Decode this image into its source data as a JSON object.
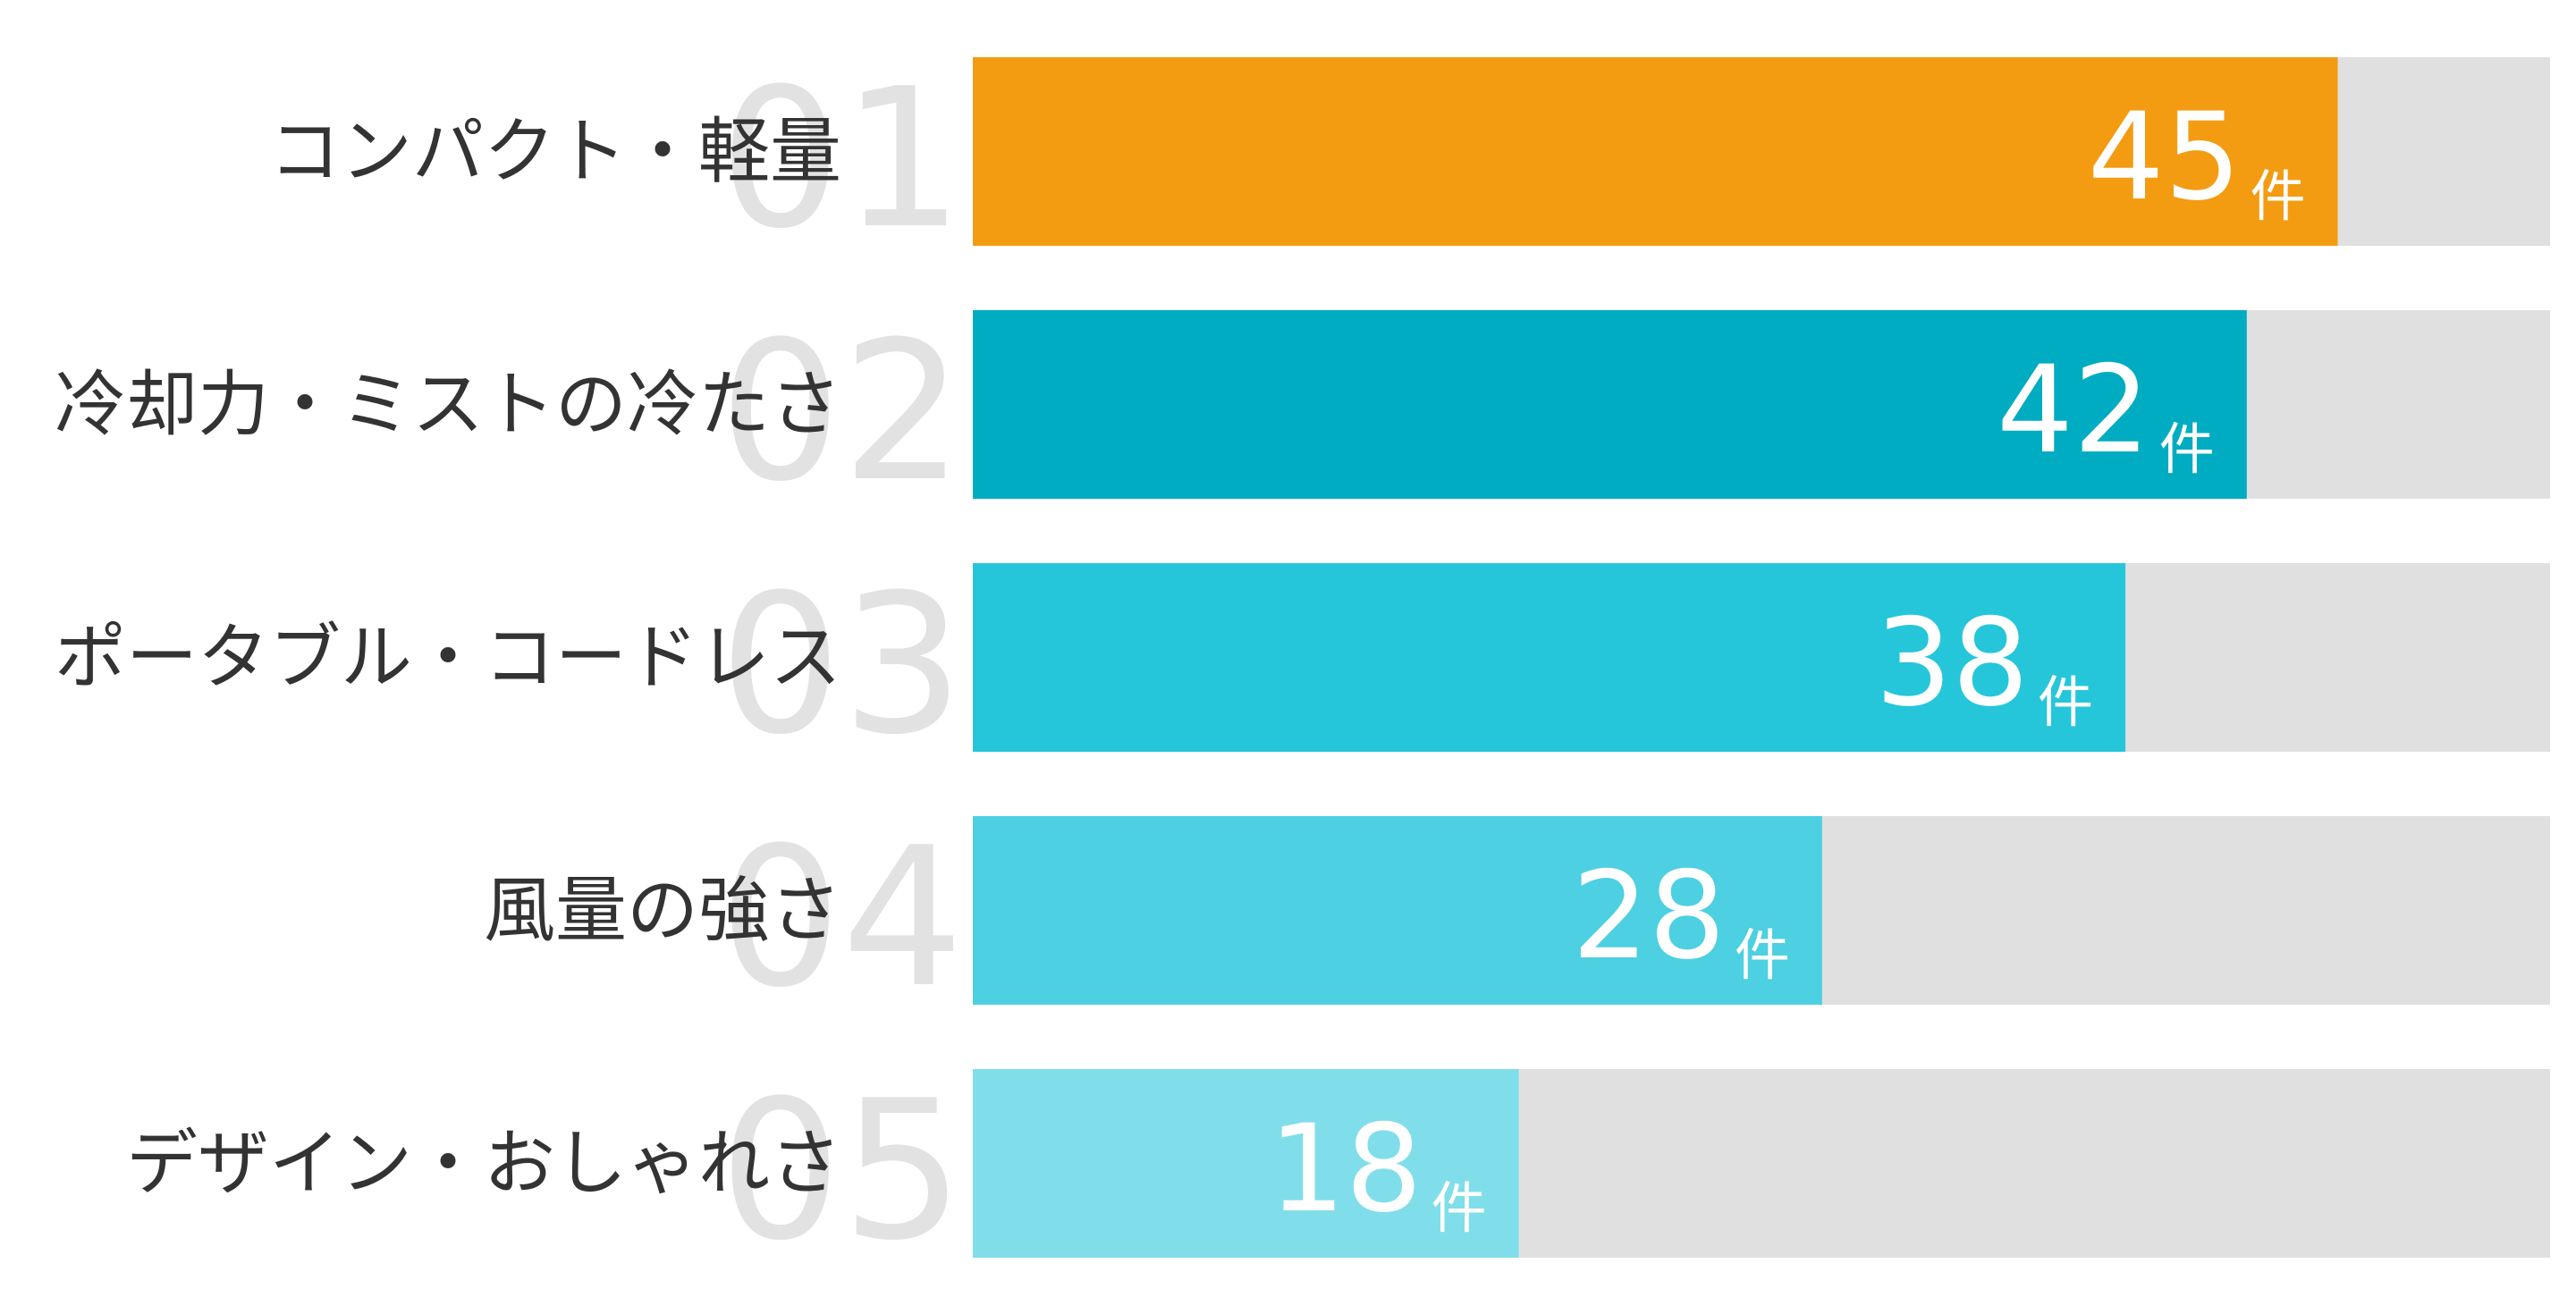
{
  "chart_data": {
    "type": "bar",
    "orientation": "horizontal",
    "categories": [
      "コンパクト・軽量",
      "冷却力・ミストの冷たさ",
      "ポータブル・コードレス",
      "風量の強さ",
      "デザイン・おしゃれさ"
    ],
    "ranks": [
      "01",
      "02",
      "03",
      "04",
      "05"
    ],
    "values": [
      45,
      42,
      38,
      28,
      18
    ],
    "unit": "件",
    "colors": [
      "#f39c12",
      "#00acc1",
      "#26c6da",
      "#4dd0e1",
      "#80deea"
    ],
    "track_color": "#e0e0e0",
    "xlim": [
      0,
      52
    ]
  }
}
